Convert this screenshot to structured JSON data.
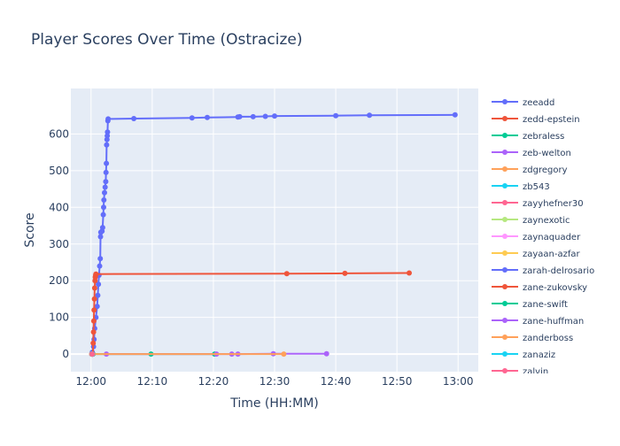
{
  "chart_data": {
    "type": "line",
    "title": "Player Scores Over Time (Ostracize)",
    "xlabel": "Time (HH:MM)",
    "ylabel": "Score",
    "x_unit": "minutes after 12:00",
    "xlim": [
      -3.3,
      63.3
    ],
    "ylim": [
      -48,
      724
    ],
    "x_ticks": [
      {
        "value": 0,
        "label": "12:00"
      },
      {
        "value": 10,
        "label": "12:10"
      },
      {
        "value": 20,
        "label": "12:20"
      },
      {
        "value": 30,
        "label": "12:30"
      },
      {
        "value": 40,
        "label": "12:40"
      },
      {
        "value": 50,
        "label": "12:50"
      },
      {
        "value": 60,
        "label": "13:00"
      }
    ],
    "y_ticks": [
      0,
      100,
      200,
      300,
      400,
      500,
      600
    ],
    "grid": true,
    "legend_position": "right",
    "series": [
      {
        "name": "zeeadd",
        "color": "#636efa",
        "points": [
          [
            0.1,
            0
          ],
          [
            0.2,
            5
          ],
          [
            0.4,
            20
          ],
          [
            0.5,
            40
          ],
          [
            0.6,
            70
          ],
          [
            0.8,
            100
          ],
          [
            1.0,
            130
          ],
          [
            1.1,
            160
          ],
          [
            1.2,
            190
          ],
          [
            1.3,
            215
          ],
          [
            1.4,
            240
          ],
          [
            1.5,
            260
          ],
          [
            1.55,
            320
          ],
          [
            1.6,
            332
          ],
          [
            1.8,
            335
          ],
          [
            1.9,
            345
          ],
          [
            2.0,
            380
          ],
          [
            2.05,
            400
          ],
          [
            2.1,
            420
          ],
          [
            2.2,
            440
          ],
          [
            2.3,
            455
          ],
          [
            2.4,
            470
          ],
          [
            2.45,
            495
          ],
          [
            2.5,
            520
          ],
          [
            2.55,
            570
          ],
          [
            2.6,
            585
          ],
          [
            2.65,
            595
          ],
          [
            2.7,
            605
          ],
          [
            2.75,
            636
          ],
          [
            2.8,
            641
          ],
          [
            7.0,
            642
          ],
          [
            16.5,
            644
          ],
          [
            19.0,
            645
          ],
          [
            24.0,
            646
          ],
          [
            24.3,
            647
          ],
          [
            26.5,
            647
          ],
          [
            28.5,
            648
          ],
          [
            30.0,
            649
          ],
          [
            40.0,
            650
          ],
          [
            45.5,
            651
          ],
          [
            59.5,
            652
          ]
        ]
      },
      {
        "name": "zedd-epstein",
        "color": "#ef553b",
        "points": [
          [
            0.3,
            0
          ],
          [
            0.35,
            30
          ],
          [
            0.4,
            60
          ],
          [
            0.45,
            90
          ],
          [
            0.5,
            120
          ],
          [
            0.55,
            150
          ],
          [
            0.6,
            180
          ],
          [
            0.65,
            200
          ],
          [
            0.7,
            210
          ],
          [
            0.75,
            215
          ],
          [
            0.8,
            218
          ],
          [
            32.0,
            219
          ],
          [
            41.5,
            220
          ],
          [
            52.0,
            221
          ]
        ]
      },
      {
        "name": "zebraless",
        "color": "#00cc96",
        "points": [
          [
            0.3,
            0
          ],
          [
            9.8,
            0
          ],
          [
            20.2,
            0
          ]
        ]
      },
      {
        "name": "zeb-welton",
        "color": "#ab63fa",
        "points": [
          [
            2.5,
            0
          ],
          [
            20.5,
            0
          ],
          [
            23.0,
            0
          ],
          [
            24.0,
            0
          ],
          [
            29.8,
            1
          ],
          [
            38.5,
            1
          ]
        ]
      },
      {
        "name": "zdgregory",
        "color": "#ffa15a",
        "points": [
          [
            0.1,
            0
          ],
          [
            31.5,
            0
          ]
        ]
      },
      {
        "name": "zb543",
        "color": "#19d3f3",
        "points": [
          [
            0.2,
            0
          ]
        ]
      },
      {
        "name": "zayyhefner30",
        "color": "#ff6692",
        "points": [
          [
            0.2,
            0
          ]
        ]
      },
      {
        "name": "zaynexotic",
        "color": "#b6e880",
        "points": [
          [
            0.2,
            0
          ]
        ]
      },
      {
        "name": "zaynaquader",
        "color": "#ff97ff",
        "points": [
          [
            0.2,
            0
          ]
        ]
      },
      {
        "name": "zayaan-azfar",
        "color": "#fecb52",
        "points": [
          [
            0.2,
            0
          ]
        ]
      },
      {
        "name": "zarah-delrosario",
        "color": "#636efa",
        "points": [
          [
            0.2,
            0
          ]
        ]
      },
      {
        "name": "zane-zukovsky",
        "color": "#ef553b",
        "points": [
          [
            0.2,
            0
          ]
        ]
      },
      {
        "name": "zane-swift",
        "color": "#00cc96",
        "points": [
          [
            0.2,
            0
          ]
        ]
      },
      {
        "name": "zane-huffman",
        "color": "#ab63fa",
        "points": [
          [
            0.2,
            0
          ]
        ]
      },
      {
        "name": "zanderboss",
        "color": "#ffa15a",
        "points": [
          [
            0.2,
            0
          ]
        ]
      },
      {
        "name": "zanaziz",
        "color": "#19d3f3",
        "points": [
          [
            0.2,
            0
          ]
        ]
      },
      {
        "name": "zalvin",
        "color": "#ff6692",
        "points": [
          [
            0.2,
            0
          ]
        ]
      }
    ]
  }
}
